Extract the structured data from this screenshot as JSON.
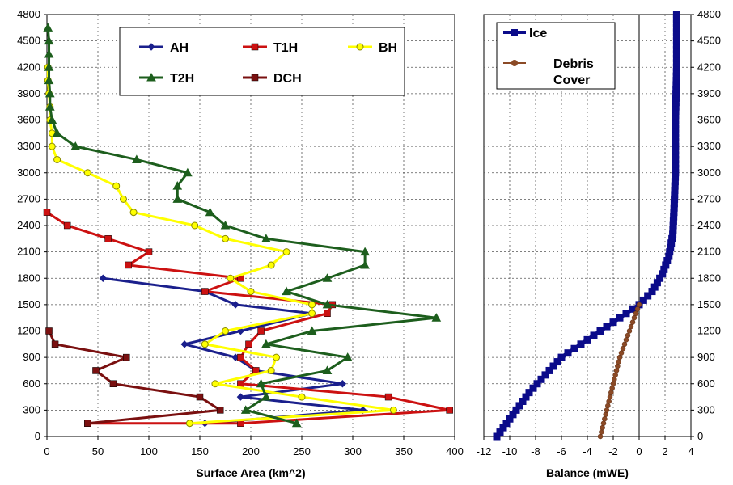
{
  "chart_data": [
    {
      "type": "line",
      "xlabel": "Surface Area (km^2)",
      "ylabel": "",
      "xlim": [
        0,
        400
      ],
      "ylim": [
        0,
        4800
      ],
      "x_ticks": [
        0,
        50,
        100,
        150,
        200,
        250,
        300,
        350,
        400
      ],
      "y_ticks": [
        0,
        300,
        600,
        900,
        1200,
        1500,
        1800,
        2100,
        2400,
        2700,
        3000,
        3300,
        3600,
        3900,
        4200,
        4500,
        4800
      ],
      "grid": true,
      "legend_position": "top",
      "series": [
        {
          "name": "AH",
          "color": "#1a1f8c",
          "marker": "diamond",
          "points": [
            [
              155,
              150
            ],
            [
              310,
              300
            ],
            [
              190,
              450
            ],
            [
              290,
              600
            ],
            [
              205,
              750
            ],
            [
              185,
              900
            ],
            [
              135,
              1050
            ],
            [
              190,
              1200
            ],
            [
              260,
              1400
            ],
            [
              185,
              1500
            ],
            [
              155,
              1650
            ],
            [
              55,
              1800
            ]
          ]
        },
        {
          "name": "T1H",
          "color": "#cc1111",
          "marker": "square",
          "points": [
            [
              40,
              150
            ],
            [
              190,
              150
            ],
            [
              395,
              300
            ],
            [
              335,
              450
            ],
            [
              190,
              600
            ],
            [
              205,
              750
            ],
            [
              190,
              900
            ],
            [
              198,
              1050
            ],
            [
              210,
              1200
            ],
            [
              275,
              1400
            ],
            [
              280,
              1500
            ],
            [
              155,
              1650
            ],
            [
              190,
              1800
            ],
            [
              80,
              1950
            ],
            [
              100,
              2100
            ],
            [
              60,
              2250
            ],
            [
              20,
              2400
            ],
            [
              0,
              2550
            ]
          ]
        },
        {
          "name": "BH",
          "color": "#ffff00",
          "marker": "circle",
          "points": [
            [
              140,
              150
            ],
            [
              340,
              300
            ],
            [
              250,
              450
            ],
            [
              165,
              600
            ],
            [
              220,
              750
            ],
            [
              225,
              900
            ],
            [
              155,
              1050
            ],
            [
              175,
              1200
            ],
            [
              260,
              1400
            ],
            [
              260,
              1500
            ],
            [
              200,
              1650
            ],
            [
              180,
              1800
            ],
            [
              220,
              1950
            ],
            [
              235,
              2100
            ],
            [
              175,
              2250
            ],
            [
              145,
              2400
            ],
            [
              85,
              2550
            ],
            [
              75,
              2700
            ],
            [
              68,
              2850
            ],
            [
              40,
              3000
            ],
            [
              10,
              3150
            ],
            [
              5,
              3300
            ],
            [
              5,
              3450
            ],
            [
              3,
              3600
            ],
            [
              3,
              3750
            ],
            [
              2,
              3900
            ],
            [
              1,
              4050
            ],
            [
              1,
              4200
            ]
          ]
        },
        {
          "name": "T2H",
          "color": "#1d5e1d",
          "marker": "triangle",
          "points": [
            [
              245,
              150
            ],
            [
              195,
              300
            ],
            [
              215,
              450
            ],
            [
              210,
              600
            ],
            [
              275,
              750
            ],
            [
              295,
              900
            ],
            [
              215,
              1050
            ],
            [
              260,
              1200
            ],
            [
              382,
              1350
            ],
            [
              275,
              1500
            ],
            [
              235,
              1650
            ],
            [
              275,
              1800
            ],
            [
              312,
              1950
            ],
            [
              312,
              2100
            ],
            [
              215,
              2250
            ],
            [
              175,
              2400
            ],
            [
              160,
              2550
            ],
            [
              128,
              2700
            ],
            [
              128,
              2850
            ],
            [
              138,
              3000
            ],
            [
              88,
              3150
            ],
            [
              28,
              3300
            ],
            [
              10,
              3450
            ],
            [
              5,
              3600
            ],
            [
              3,
              3750
            ],
            [
              3,
              3900
            ],
            [
              2,
              4050
            ],
            [
              2,
              4200
            ],
            [
              2,
              4350
            ],
            [
              2,
              4500
            ],
            [
              1,
              4650
            ]
          ]
        },
        {
          "name": "DCH",
          "color": "#7a1010",
          "marker": "square",
          "points": [
            [
              40,
              150
            ],
            [
              170,
              300
            ],
            [
              150,
              450
            ],
            [
              65,
              600
            ],
            [
              48,
              750
            ],
            [
              78,
              900
            ],
            [
              8,
              1050
            ],
            [
              2,
              1200
            ]
          ]
        }
      ]
    },
    {
      "type": "line",
      "xlabel": "Balance (mWE)",
      "ylabel": "",
      "xlim": [
        -12,
        4
      ],
      "ylim": [
        0,
        4800
      ],
      "x_ticks": [
        -12,
        -10,
        -8,
        -6,
        -4,
        -2,
        0,
        2,
        4
      ],
      "y_ticks": [
        0,
        300,
        600,
        900,
        1200,
        1500,
        1800,
        2100,
        2400,
        2700,
        3000,
        3300,
        3600,
        3900,
        4200,
        4500,
        4800
      ],
      "grid": true,
      "legend_position": "top-left",
      "series": [
        {
          "name": "Ice",
          "color": "#0b0b8a",
          "marker": "square",
          "points": [
            [
              -11,
              0
            ],
            [
              -8.5,
              500
            ],
            [
              -6,
              900
            ],
            [
              -3,
              1200
            ],
            [
              -1.5,
              1350
            ],
            [
              0,
              1500
            ],
            [
              1,
              1650
            ],
            [
              1.8,
              1850
            ],
            [
              2.3,
              2050
            ],
            [
              2.6,
              2300
            ],
            [
              2.7,
              2600
            ],
            [
              2.8,
              3000
            ],
            [
              2.8,
              3600
            ],
            [
              2.9,
              4200
            ],
            [
              2.9,
              4800
            ]
          ]
        },
        {
          "name": "Debris\nCover",
          "label_lines": [
            "Debris",
            "Cover"
          ],
          "color": "#8b4a26",
          "marker": "circle",
          "points": [
            [
              -3,
              0
            ],
            [
              -2.5,
              300
            ],
            [
              -2,
              600
            ],
            [
              -1.5,
              900
            ],
            [
              -1,
              1100
            ],
            [
              -0.5,
              1300
            ],
            [
              0,
              1500
            ]
          ]
        }
      ]
    }
  ]
}
